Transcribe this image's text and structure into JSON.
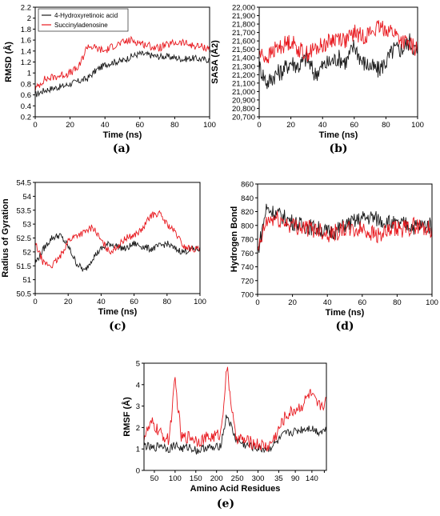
{
  "colors": {
    "series_black": "#1a1a1a",
    "series_red": "#e8191f",
    "axis": "#000000"
  },
  "chart_data": [
    {
      "id": "a",
      "type": "line",
      "caption": "(a)",
      "xlabel": "Time (ns)",
      "ylabel": "RMSD (Å)",
      "xlim": [
        0,
        100
      ],
      "ylim": [
        0.2,
        2.2
      ],
      "xticks": [
        0,
        20,
        40,
        60,
        80,
        100
      ],
      "yticks": [
        0.2,
        0.4,
        0.6,
        0.8,
        1,
        1.2,
        1.4,
        1.6,
        1.8,
        2,
        2.2
      ],
      "grid": false,
      "legend": "top-left",
      "series": [
        {
          "name": "4-Hydroxyretinoic acid",
          "color": "#1a1a1a",
          "x": [
            0,
            5,
            10,
            15,
            20,
            25,
            30,
            35,
            40,
            45,
            50,
            55,
            60,
            65,
            70,
            75,
            80,
            85,
            90,
            95,
            100
          ],
          "values": [
            0.6,
            0.68,
            0.72,
            0.75,
            0.8,
            0.85,
            0.9,
            1.05,
            1.15,
            1.2,
            1.22,
            1.3,
            1.35,
            1.33,
            1.3,
            1.3,
            1.28,
            1.25,
            1.27,
            1.25,
            1.24
          ],
          "noise": 0.06
        },
        {
          "name": "Succinyladenosine",
          "color": "#e8191f",
          "x": [
            0,
            5,
            10,
            15,
            20,
            25,
            30,
            35,
            40,
            45,
            50,
            55,
            60,
            65,
            70,
            75,
            80,
            85,
            90,
            95,
            100
          ],
          "values": [
            0.7,
            0.88,
            0.92,
            0.96,
            1.0,
            1.1,
            1.5,
            1.45,
            1.4,
            1.5,
            1.55,
            1.6,
            1.55,
            1.5,
            1.45,
            1.5,
            1.55,
            1.55,
            1.5,
            1.48,
            1.45
          ],
          "noise": 0.07
        }
      ]
    },
    {
      "id": "b",
      "type": "line",
      "caption": "(b)",
      "xlabel": "Time (ns)",
      "ylabel": "SASA (Å2)",
      "xlim": [
        0,
        100
      ],
      "ylim": [
        20700,
        22000
      ],
      "xticks": [
        0,
        20,
        40,
        60,
        80,
        100
      ],
      "yticks": [
        20700,
        20800,
        20900,
        21000,
        21100,
        21200,
        21300,
        21400,
        21500,
        21600,
        21700,
        21800,
        21900,
        22000
      ],
      "ytick_labels": [
        "20,700",
        "20,800",
        "20,900",
        "21,000",
        "21,100",
        "21,200",
        "21,300",
        "21,400",
        "21,500",
        "21,600",
        "21,700",
        "21,800",
        "21,900",
        "22,000"
      ],
      "grid": false,
      "series": [
        {
          "color": "#1a1a1a",
          "x": [
            0,
            5,
            10,
            15,
            20,
            25,
            30,
            35,
            40,
            45,
            50,
            55,
            60,
            65,
            70,
            75,
            80,
            85,
            90,
            95,
            100
          ],
          "values": [
            21300,
            21100,
            21200,
            21250,
            21350,
            21300,
            21400,
            21200,
            21300,
            21350,
            21400,
            21350,
            21550,
            21350,
            21300,
            21250,
            21350,
            21500,
            21500,
            21600,
            21450
          ],
          "noise": 110
        },
        {
          "color": "#e8191f",
          "x": [
            0,
            5,
            10,
            15,
            20,
            25,
            30,
            35,
            40,
            45,
            50,
            55,
            60,
            65,
            70,
            75,
            80,
            85,
            90,
            95,
            100
          ],
          "values": [
            21450,
            21400,
            21500,
            21550,
            21600,
            21500,
            21450,
            21500,
            21550,
            21600,
            21650,
            21600,
            21700,
            21650,
            21700,
            21750,
            21750,
            21700,
            21600,
            21550,
            21500
          ],
          "noise": 100
        }
      ]
    },
    {
      "id": "c",
      "type": "line",
      "caption": "(c)",
      "xlabel": "Time (ns)",
      "ylabel": "Radius of Gyration",
      "xlim": [
        0,
        100
      ],
      "ylim": [
        50.5,
        54.5
      ],
      "xticks": [
        0,
        20,
        40,
        60,
        80,
        100
      ],
      "yticks": [
        50.5,
        51,
        51.5,
        52,
        52.5,
        53,
        53.5,
        54,
        54.5
      ],
      "grid": false,
      "series": [
        {
          "color": "#1a1a1a",
          "x": [
            0,
            5,
            10,
            15,
            20,
            25,
            30,
            35,
            40,
            45,
            50,
            55,
            60,
            65,
            70,
            75,
            80,
            85,
            90,
            95,
            100
          ],
          "values": [
            51.6,
            52.1,
            52.5,
            52.6,
            52.2,
            51.6,
            51.3,
            51.8,
            52.1,
            52.3,
            52.2,
            52.1,
            52.3,
            52.2,
            52.1,
            52.2,
            52.3,
            52.1,
            52.0,
            52.1,
            52.1
          ],
          "noise": 0.12
        },
        {
          "color": "#e8191f",
          "x": [
            0,
            5,
            10,
            15,
            20,
            25,
            30,
            35,
            40,
            45,
            50,
            55,
            60,
            65,
            70,
            75,
            80,
            85,
            90,
            95,
            100
          ],
          "values": [
            52.3,
            51.6,
            51.5,
            51.8,
            52.4,
            52.6,
            52.7,
            52.9,
            52.4,
            52.0,
            52.2,
            52.5,
            52.6,
            52.8,
            53.3,
            53.4,
            53.0,
            52.7,
            52.2,
            52.1,
            52.1
          ],
          "noise": 0.12
        }
      ]
    },
    {
      "id": "d",
      "type": "line",
      "caption": "(d)",
      "xlabel": "Time (ns)",
      "ylabel": "Hydrogen Bond",
      "xlim": [
        0,
        100
      ],
      "ylim": [
        700,
        860
      ],
      "xticks": [
        0,
        20,
        40,
        60,
        80,
        100
      ],
      "yticks": [
        700,
        720,
        740,
        760,
        780,
        800,
        820,
        840,
        860
      ],
      "grid": false,
      "series": [
        {
          "color": "#1a1a1a",
          "x": [
            0,
            5,
            10,
            15,
            20,
            25,
            30,
            35,
            40,
            45,
            50,
            55,
            60,
            65,
            70,
            75,
            80,
            85,
            90,
            95,
            100
          ],
          "values": [
            760,
            825,
            818,
            812,
            805,
            800,
            798,
            795,
            790,
            792,
            800,
            805,
            810,
            812,
            808,
            805,
            800,
            802,
            798,
            800,
            800
          ],
          "noise": 12
        },
        {
          "color": "#e8191f",
          "x": [
            0,
            5,
            10,
            15,
            20,
            25,
            30,
            35,
            40,
            45,
            50,
            55,
            60,
            65,
            70,
            75,
            80,
            85,
            90,
            95,
            100
          ],
          "values": [
            760,
            805,
            810,
            805,
            800,
            798,
            795,
            795,
            788,
            790,
            795,
            792,
            795,
            790,
            785,
            790,
            795,
            795,
            800,
            797,
            795
          ],
          "noise": 13
        }
      ]
    },
    {
      "id": "e",
      "type": "line",
      "caption": "(e)",
      "xlabel": "Amino Acid Residues",
      "ylabel": "RMSF (Å)",
      "xlim": [
        0,
        440
      ],
      "ylim": [
        0,
        5
      ],
      "xtick_positions": [
        25,
        75,
        125,
        175,
        225,
        275,
        325,
        365,
        405,
        435
      ],
      "xtick_labels": [
        "50",
        "100",
        "150",
        "200",
        "250",
        "300",
        "35",
        "90",
        "140",
        ""
      ],
      "xtick_labels_display": [
        "50",
        "100",
        "150",
        "200",
        "250",
        "300",
        "35",
        "90",
        "140"
      ],
      "yticks": [
        0,
        1,
        2,
        3,
        4,
        5
      ],
      "grid": false,
      "series": [
        {
          "color": "#1a1a1a",
          "x": [
            0,
            20,
            40,
            60,
            75,
            90,
            110,
            130,
            150,
            170,
            185,
            200,
            220,
            240,
            260,
            280,
            300,
            320,
            340,
            360,
            380,
            400,
            420,
            440
          ],
          "values": [
            1.2,
            1.0,
            1.2,
            1.0,
            1.2,
            1.0,
            1.1,
            0.9,
            1.1,
            1.0,
            1.2,
            2.6,
            1.5,
            1.2,
            1.1,
            1.0,
            1.0,
            1.3,
            1.7,
            1.8,
            1.9,
            2.0,
            1.8,
            1.9
          ],
          "noise": 0.2
        },
        {
          "color": "#e8191f",
          "x": [
            0,
            20,
            40,
            60,
            75,
            90,
            110,
            130,
            150,
            170,
            185,
            200,
            220,
            240,
            260,
            280,
            300,
            320,
            340,
            360,
            380,
            400,
            420,
            440
          ],
          "values": [
            1.6,
            2.2,
            1.7,
            1.4,
            4.2,
            1.5,
            1.6,
            1.4,
            1.5,
            1.6,
            1.7,
            4.8,
            1.6,
            1.4,
            1.3,
            1.2,
            1.1,
            1.7,
            2.5,
            2.8,
            3.0,
            3.6,
            3.0,
            3.2
          ],
          "noise": 0.3
        }
      ]
    }
  ]
}
